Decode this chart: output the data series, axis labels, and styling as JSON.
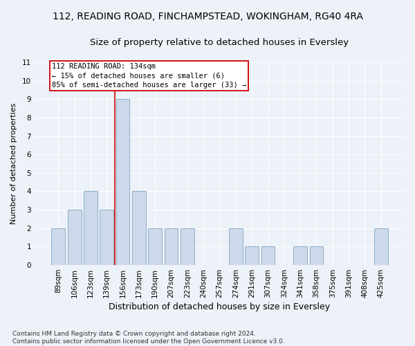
{
  "title_line1": "112, READING ROAD, FINCHAMPSTEAD, WOKINGHAM, RG40 4RA",
  "title_line2": "Size of property relative to detached houses in Eversley",
  "xlabel": "Distribution of detached houses by size in Eversley",
  "ylabel": "Number of detached properties",
  "footnote": "Contains HM Land Registry data © Crown copyright and database right 2024.\nContains public sector information licensed under the Open Government Licence v3.0.",
  "categories": [
    "89sqm",
    "106sqm",
    "123sqm",
    "139sqm",
    "156sqm",
    "173sqm",
    "190sqm",
    "207sqm",
    "223sqm",
    "240sqm",
    "257sqm",
    "274sqm",
    "291sqm",
    "307sqm",
    "324sqm",
    "341sqm",
    "358sqm",
    "375sqm",
    "391sqm",
    "408sqm",
    "425sqm"
  ],
  "values": [
    2,
    3,
    4,
    3,
    9,
    4,
    2,
    2,
    2,
    0,
    0,
    2,
    1,
    1,
    0,
    1,
    1,
    0,
    0,
    0,
    2
  ],
  "bar_color": "#cdd9ea",
  "bar_edge_color": "#8aaec8",
  "reference_line_x": 3.5,
  "annotation_label": "112 READING ROAD: 134sqm",
  "annotation_line1": "← 15% of detached houses are smaller (6)",
  "annotation_line2": "85% of semi-detached houses are larger (33) →",
  "annotation_box_facecolor": "#ffffff",
  "annotation_box_edgecolor": "#cc0000",
  "ref_line_color": "#cc0000",
  "ylim": [
    0,
    11
  ],
  "yticks": [
    0,
    1,
    2,
    3,
    4,
    5,
    6,
    7,
    8,
    9,
    10,
    11
  ],
  "background_color": "#edf1f8",
  "grid_color": "#ffffff",
  "title1_fontsize": 10,
  "title2_fontsize": 9.5,
  "xlabel_fontsize": 9,
  "ylabel_fontsize": 8,
  "tick_fontsize": 7.5,
  "annotation_fontsize": 7.5,
  "footnote_fontsize": 6.5
}
